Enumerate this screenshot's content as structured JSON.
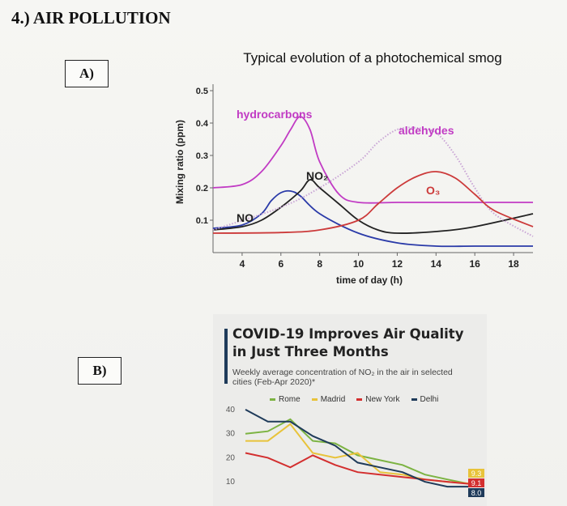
{
  "page": {
    "title": "4.) AIR POLLUTION",
    "label_a": "A)",
    "label_b": "B)"
  },
  "chart_data": [
    {
      "type": "line",
      "title": "Typical evolution of a photochemical smog",
      "xlabel": "time of day (h)",
      "ylabel": "Mixing ratio (ppm)",
      "xlim": [
        2.5,
        19
      ],
      "ylim": [
        0,
        0.5
      ],
      "x_ticks": [
        "4",
        "6",
        "8",
        "10",
        "12",
        "14",
        "16",
        "18"
      ],
      "y_ticks": [
        "0.1",
        "0.2",
        "0.3",
        "0.4",
        "0.5"
      ],
      "series": [
        {
          "name": "hydrocarbons",
          "color": "#c13bc4",
          "x": [
            2.5,
            4,
            5,
            6,
            6.5,
            7,
            7.5,
            8,
            9,
            10,
            12,
            14,
            16,
            19
          ],
          "y": [
            0.2,
            0.21,
            0.25,
            0.33,
            0.38,
            0.42,
            0.38,
            0.28,
            0.18,
            0.155,
            0.155,
            0.155,
            0.155,
            0.155
          ]
        },
        {
          "name": "NO",
          "color": "#2a3aa8",
          "x": [
            2.5,
            4,
            5,
            5.5,
            6,
            6.5,
            7,
            8,
            10,
            12,
            14,
            16,
            19
          ],
          "y": [
            0.075,
            0.085,
            0.12,
            0.16,
            0.185,
            0.19,
            0.175,
            0.12,
            0.06,
            0.03,
            0.02,
            0.02,
            0.02
          ]
        },
        {
          "name": "NO2",
          "color": "#222222",
          "x": [
            2.5,
            4,
            5,
            6,
            7,
            7.5,
            8,
            9,
            10,
            11,
            12,
            14,
            16,
            19
          ],
          "y": [
            0.07,
            0.08,
            0.1,
            0.14,
            0.19,
            0.225,
            0.2,
            0.15,
            0.1,
            0.07,
            0.06,
            0.065,
            0.08,
            0.12
          ]
        },
        {
          "name": "aldehydes",
          "color": "#c9a5d6",
          "style": "dotted",
          "x": [
            2.5,
            6,
            8,
            10,
            11,
            12,
            13,
            14,
            15,
            16,
            17,
            19
          ],
          "y": [
            0.07,
            0.14,
            0.2,
            0.28,
            0.34,
            0.38,
            0.385,
            0.37,
            0.3,
            0.2,
            0.12,
            0.05
          ]
        },
        {
          "name": "O3",
          "color": "#cc3a3a",
          "x": [
            2.5,
            6,
            8,
            10,
            11,
            12,
            13,
            14,
            15,
            16,
            17,
            19
          ],
          "y": [
            0.06,
            0.062,
            0.07,
            0.1,
            0.15,
            0.2,
            0.235,
            0.25,
            0.23,
            0.18,
            0.13,
            0.08
          ]
        }
      ],
      "annotations": [
        "hydrocarbons",
        "aldehydes",
        "NO₂",
        "O₃",
        "NO"
      ]
    },
    {
      "type": "line",
      "title": "COVID-19 Improves Air Quality in Just Three Months",
      "subtitle": "Weekly average concentration of NO₂ in the air in selected cities (Feb-Apr 2020)*",
      "y_ticks": [
        "40",
        "30",
        "20",
        "10"
      ],
      "ylim": [
        5,
        42
      ],
      "x_count": 11,
      "series": [
        {
          "name": "Rome",
          "color": "#7cb342",
          "values": [
            30,
            31,
            36,
            27,
            26,
            21,
            19,
            17,
            13,
            11,
            9.1
          ]
        },
        {
          "name": "Madrid",
          "color": "#e8c33a",
          "values": [
            27,
            27,
            34,
            22,
            20,
            22,
            14,
            13,
            11,
            10,
            9.3
          ]
        },
        {
          "name": "New York",
          "color": "#d32f2f",
          "values": [
            22,
            20,
            16,
            21,
            17,
            14,
            13,
            12,
            11,
            10,
            9.1
          ]
        },
        {
          "name": "Delhi",
          "color": "#1f3b5a",
          "values": [
            40,
            35,
            35,
            29,
            25,
            18,
            16,
            14,
            10,
            8,
            8.0
          ]
        }
      ],
      "badges": [
        {
          "text": "9.3",
          "color": "#e8c33a"
        },
        {
          "text": "9.1",
          "color": "#d32f2f"
        },
        {
          "text": "8.0",
          "color": "#1f3b5a"
        }
      ],
      "legend": [
        "Rome",
        "Madrid",
        "New York",
        "Delhi"
      ]
    }
  ]
}
